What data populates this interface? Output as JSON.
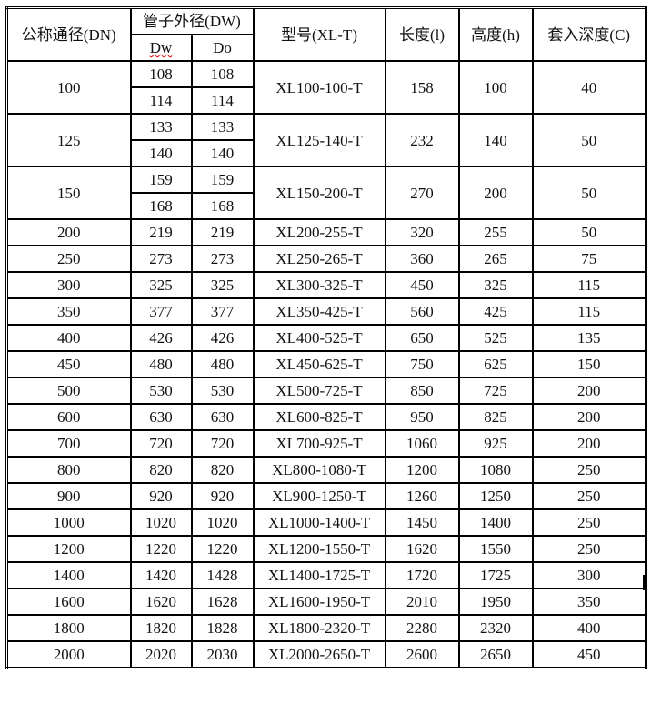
{
  "headers": {
    "dn": "公称通径(DN)",
    "pipe_od": "管子外径(DW)",
    "dw": "Dw",
    "do": "Do",
    "model": "型号(XL-T)",
    "length": "长度(l)",
    "height": "高度(h)",
    "depth": "套入深度(C)"
  },
  "grouped_rows": [
    {
      "dn": "100",
      "pairs": [
        [
          "108",
          "108"
        ],
        [
          "114",
          "114"
        ]
      ],
      "model": "XL100-100-T",
      "length": "158",
      "height": "100",
      "depth": "40"
    },
    {
      "dn": "125",
      "pairs": [
        [
          "133",
          "133"
        ],
        [
          "140",
          "140"
        ]
      ],
      "model": "XL125-140-T",
      "length": "232",
      "height": "140",
      "depth": "50"
    },
    {
      "dn": "150",
      "pairs": [
        [
          "159",
          "159"
        ],
        [
          "168",
          "168"
        ]
      ],
      "model": "XL150-200-T",
      "length": "270",
      "height": "200",
      "depth": "50"
    }
  ],
  "rows": [
    {
      "dn": "200",
      "dw": "219",
      "do": "219",
      "model": "XL200-255-T",
      "length": "320",
      "height": "255",
      "depth": "50"
    },
    {
      "dn": "250",
      "dw": "273",
      "do": "273",
      "model": "XL250-265-T",
      "length": "360",
      "height": "265",
      "depth": "75"
    },
    {
      "dn": "300",
      "dw": "325",
      "do": "325",
      "model": "XL300-325-T",
      "length": "450",
      "height": "325",
      "depth": "115"
    },
    {
      "dn": "350",
      "dw": "377",
      "do": "377",
      "model": "XL350-425-T",
      "length": "560",
      "height": "425",
      "depth": "115"
    },
    {
      "dn": "400",
      "dw": "426",
      "do": "426",
      "model": "XL400-525-T",
      "length": "650",
      "height": "525",
      "depth": "135"
    },
    {
      "dn": "450",
      "dw": "480",
      "do": "480",
      "model": "XL450-625-T",
      "length": "750",
      "height": "625",
      "depth": "150"
    },
    {
      "dn": "500",
      "dw": "530",
      "do": "530",
      "model": "XL500-725-T",
      "length": "850",
      "height": "725",
      "depth": "200"
    },
    {
      "dn": "600",
      "dw": "630",
      "do": "630",
      "model": "XL600-825-T",
      "length": "950",
      "height": "825",
      "depth": "200"
    },
    {
      "dn": "700",
      "dw": "720",
      "do": "720",
      "model": "XL700-925-T",
      "length": "1060",
      "height": "925",
      "depth": "200"
    },
    {
      "dn": "800",
      "dw": "820",
      "do": "820",
      "model": "XL800-1080-T",
      "length": "1200",
      "height": "1080",
      "depth": "250"
    },
    {
      "dn": "900",
      "dw": "920",
      "do": "920",
      "model": "XL900-1250-T",
      "length": "1260",
      "height": "1250",
      "depth": "250"
    },
    {
      "dn": "1000",
      "dw": "1020",
      "do": "1020",
      "model": "XL1000-1400-T",
      "length": "1450",
      "height": "1400",
      "depth": "250"
    },
    {
      "dn": "1200",
      "dw": "1220",
      "do": "1220",
      "model": "XL1200-1550-T",
      "length": "1620",
      "height": "1550",
      "depth": "250"
    },
    {
      "dn": "1400",
      "dw": "1420",
      "do": "1428",
      "model": "XL1400-1725-T",
      "length": "1720",
      "height": "1725",
      "depth": "300"
    },
    {
      "dn": "1600",
      "dw": "1620",
      "do": "1628",
      "model": "XL1600-1950-T",
      "length": "2010",
      "height": "1950",
      "depth": "350"
    },
    {
      "dn": "1800",
      "dw": "1820",
      "do": "1828",
      "model": "XL1800-2320-T",
      "length": "2280",
      "height": "2320",
      "depth": "400"
    },
    {
      "dn": "2000",
      "dw": "2020",
      "do": "2030",
      "model": "XL2000-2650-T",
      "length": "2600",
      "height": "2650",
      "depth": "450"
    }
  ]
}
